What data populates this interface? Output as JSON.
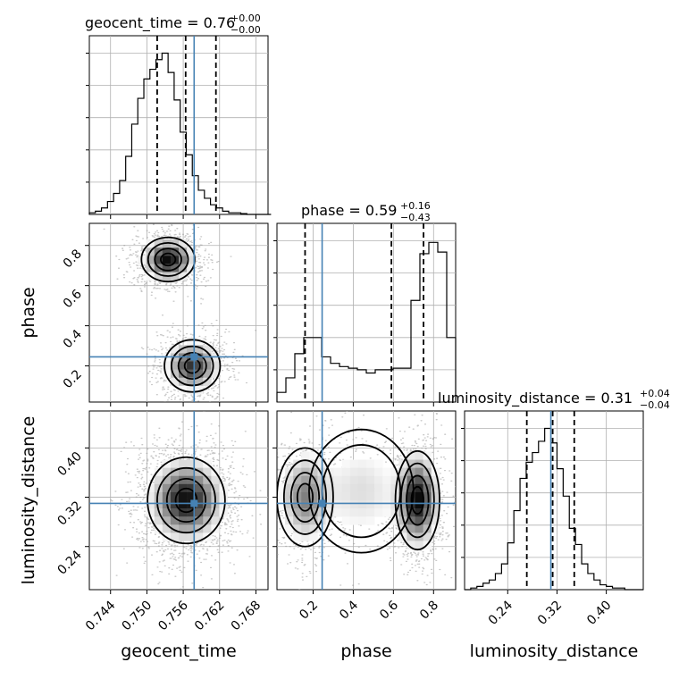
{
  "chart_data": {
    "type": "corner",
    "parameters": [
      {
        "name": "geocent_time",
        "median": "0.76",
        "plus": "+0.00",
        "minus": "−0.00",
        "range": [
          0.7405,
          0.77
        ],
        "ticks": [
          0.744,
          0.75,
          0.756,
          0.762,
          0.768
        ],
        "tick_labels": [
          "0.744",
          "0.750",
          "0.756",
          "0.762",
          "0.768"
        ],
        "quantiles": [
          0.7517,
          0.7564,
          0.7614
        ],
        "truth": 0.7578,
        "hist": {
          "bin_start": 0.7405,
          "bin_width": 0.001,
          "values": [
            0.01,
            0.02,
            0.04,
            0.08,
            0.13,
            0.21,
            0.36,
            0.56,
            0.72,
            0.84,
            0.9,
            0.96,
            1.0,
            0.88,
            0.71,
            0.51,
            0.37,
            0.24,
            0.15,
            0.1,
            0.06,
            0.04,
            0.02,
            0.01,
            0.01,
            0.005,
            0.0,
            0.0,
            0.0,
            0.0
          ]
        }
      },
      {
        "name": "phase",
        "median": "0.59",
        "plus": "+0.16",
        "minus": "−0.43",
        "range": [
          0.02,
          0.91
        ],
        "ticks": [
          0.2,
          0.4,
          0.6,
          0.8
        ],
        "tick_labels": [
          "0.2",
          "0.4",
          "0.6",
          "0.8"
        ],
        "quantiles": [
          0.16,
          0.59,
          0.75
        ],
        "truth": 0.245,
        "hist": {
          "bin_start": 0.02,
          "bin_width": 0.0445,
          "values": [
            0.06,
            0.15,
            0.3,
            0.4,
            0.4,
            0.28,
            0.24,
            0.22,
            0.21,
            0.2,
            0.18,
            0.2,
            0.2,
            0.21,
            0.21,
            0.63,
            0.92,
            0.99,
            0.93,
            0.4
          ]
        }
      },
      {
        "name": "luminosity_distance",
        "median": "0.31",
        "plus": "+0.04",
        "minus": "−0.04",
        "range": [
          0.17,
          0.46
        ],
        "ticks": [
          0.24,
          0.32,
          0.4
        ],
        "tick_labels": [
          "0.24",
          "0.32",
          "0.40"
        ],
        "quantiles": [
          0.271,
          0.313,
          0.348
        ],
        "truth": 0.31,
        "hist": {
          "bin_start": 0.17,
          "bin_width": 0.01,
          "values": [
            0.0,
            0.01,
            0.02,
            0.04,
            0.06,
            0.1,
            0.16,
            0.29,
            0.49,
            0.69,
            0.79,
            0.85,
            0.92,
            1.0,
            0.91,
            0.75,
            0.58,
            0.38,
            0.28,
            0.16,
            0.1,
            0.06,
            0.03,
            0.02,
            0.01,
            0.01,
            0.0,
            0.0,
            0.0
          ]
        }
      }
    ],
    "density_modes": {
      "phase_vs_geocent_time": [
        {
          "x": 0.7535,
          "y": 0.73,
          "sx": 0.0022,
          "sy": 0.055,
          "w": 1.0
        },
        {
          "x": 0.7575,
          "y": 0.2,
          "sx": 0.0023,
          "sy": 0.065,
          "w": 0.85
        }
      ],
      "luminosity_distance_vs_geocent_time": [
        {
          "x": 0.7565,
          "y": 0.315,
          "sx": 0.0032,
          "sy": 0.035,
          "w": 1.0
        }
      ],
      "luminosity_distance_vs_phase": [
        {
          "x": 0.72,
          "y": 0.315,
          "sx": 0.055,
          "sy": 0.04,
          "w": 1.0
        },
        {
          "x": 0.16,
          "y": 0.32,
          "sx": 0.07,
          "sy": 0.04,
          "w": 0.55
        },
        {
          "x": 0.44,
          "y": 0.33,
          "sx": 0.13,
          "sy": 0.05,
          "w": 0.22
        }
      ]
    },
    "colors": {
      "truth": "#4682b4",
      "hist": "#000000",
      "contour": "#000000",
      "grid": "#b0b0b0"
    },
    "grid": true
  }
}
